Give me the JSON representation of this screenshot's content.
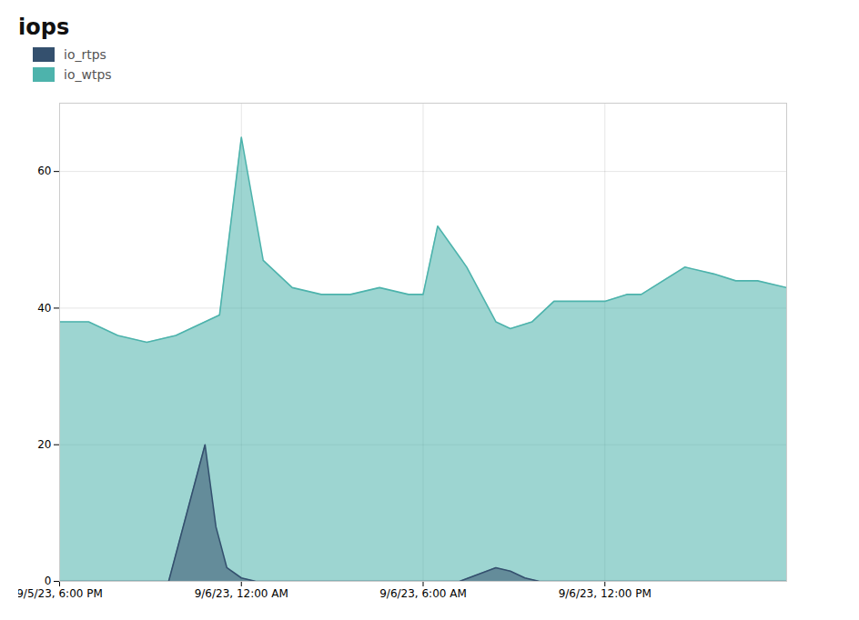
{
  "chart_data": {
    "type": "area",
    "title": "iops",
    "series": [
      {
        "name": "io_rtps",
        "color": "#34506e",
        "x": [
          0,
          1.5,
          2.0,
          2.15,
          2.3,
          2.5,
          2.7,
          3.0,
          5.5,
          6.0,
          6.2,
          6.4,
          6.6,
          7.0,
          10.0
        ],
        "values": [
          0,
          0,
          20,
          8,
          2,
          0.5,
          0,
          0,
          0,
          2,
          1.5,
          0.5,
          0,
          0,
          0
        ]
      },
      {
        "name": "io_wtps",
        "color": "#4db3ac",
        "x": [
          0,
          0.4,
          0.8,
          1.2,
          1.6,
          2.0,
          2.2,
          2.5,
          2.8,
          3.2,
          3.6,
          3.8,
          4.0,
          4.4,
          4.8,
          5.0,
          5.2,
          5.4,
          5.6,
          6.0,
          6.2,
          6.5,
          6.8,
          7.0,
          7.2,
          7.5,
          7.8,
          8.0,
          8.3,
          8.6,
          9.0,
          9.3,
          9.6,
          10.0
        ],
        "values": [
          38,
          38,
          36,
          35,
          36,
          38,
          39,
          65,
          47,
          43,
          42,
          42,
          42,
          43,
          42,
          42,
          52,
          49,
          46,
          38,
          37,
          38,
          41,
          41,
          41,
          41,
          42,
          42,
          44,
          46,
          45,
          44,
          44,
          43
        ]
      }
    ],
    "xlim": [
      0,
      10.0
    ],
    "xticks": [
      {
        "value": 0,
        "label": "9/5/23, 6:00 PM"
      },
      {
        "value": 2.5,
        "label": "9/6/23, 12:00 AM"
      },
      {
        "value": 5.0,
        "label": "9/6/23, 6:00 AM"
      },
      {
        "value": 7.5,
        "label": "9/6/23, 12:00 PM"
      }
    ],
    "ylim": [
      0,
      70
    ],
    "yticks": [
      0,
      20,
      40,
      60
    ],
    "grid": true,
    "legend": "upper left"
  }
}
